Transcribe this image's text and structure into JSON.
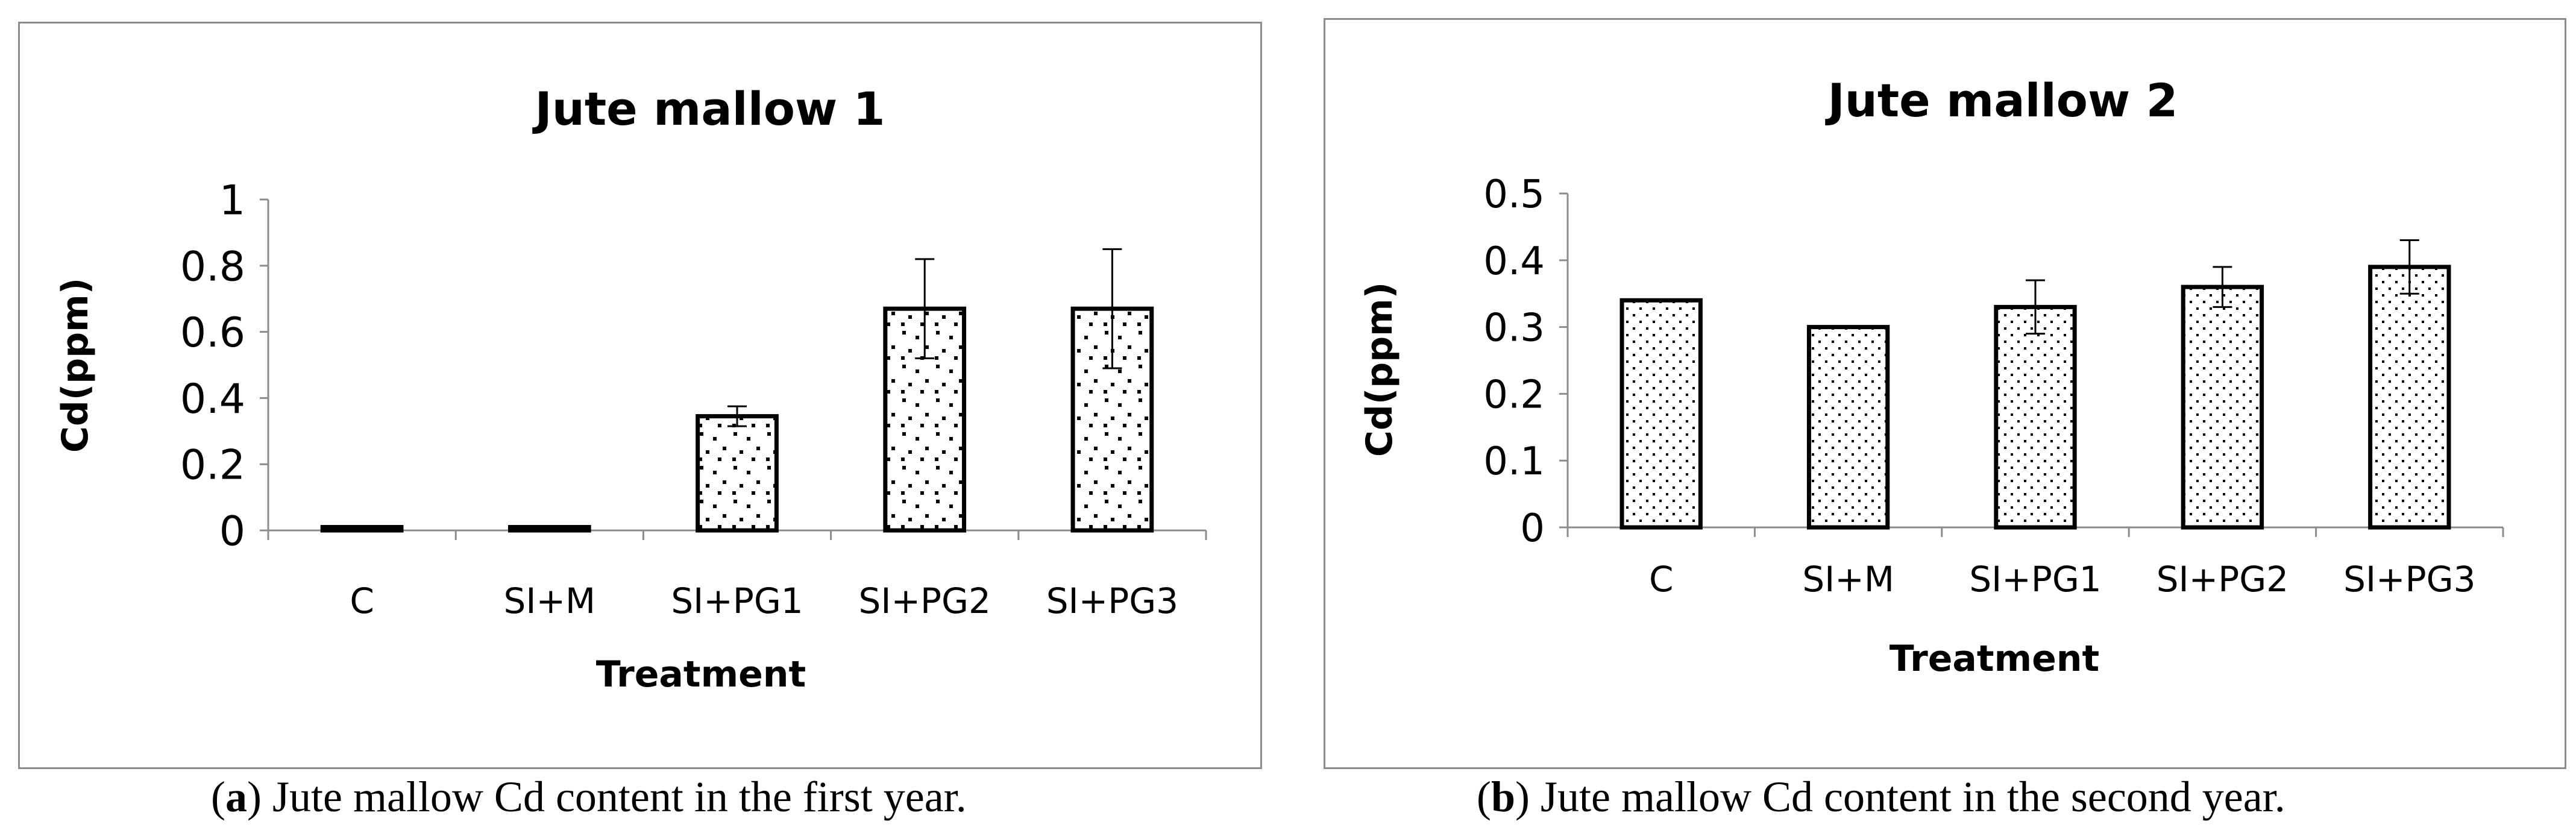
{
  "chart_data": [
    {
      "type": "bar",
      "title": "Jute mallow 1",
      "xlabel": "Treatment",
      "ylabel": "Cd(ppm)",
      "categories": [
        "C",
        "SI+M",
        "SI+PG1",
        "SI+PG2",
        "SI+PG3"
      ],
      "values": [
        0.01,
        0.01,
        0.345,
        0.67,
        0.67
      ],
      "errors": [
        0,
        0,
        0.03,
        0.15,
        0.18
      ],
      "ylim": [
        0,
        1
      ],
      "yticks": [
        "0",
        "0.2",
        "0.4",
        "0.6",
        "0.8",
        "1"
      ],
      "ytick_values": [
        0,
        0.2,
        0.4,
        0.6,
        0.8,
        1.0
      ],
      "pattern": "sparse-dots",
      "caption_label": "a",
      "caption_text": " Jute mallow Cd content in the first year."
    },
    {
      "type": "bar",
      "title": "Jute mallow 2",
      "xlabel": "Treatment",
      "ylabel": "Cd(ppm)",
      "categories": [
        "C",
        "SI+M",
        "SI+PG1",
        "SI+PG2",
        "SI+PG3"
      ],
      "values": [
        0.34,
        0.3,
        0.33,
        0.36,
        0.39
      ],
      "errors": [
        0,
        0,
        0.04,
        0.03,
        0.04
      ],
      "ylim": [
        0,
        0.5
      ],
      "yticks": [
        "0",
        "0.1",
        "0.2",
        "0.3",
        "0.4",
        "0.5"
      ],
      "ytick_values": [
        0,
        0.1,
        0.2,
        0.3,
        0.4,
        0.5
      ],
      "pattern": "dense-dots",
      "caption_label": "b",
      "caption_text": " Jute mallow Cd content in the second year."
    }
  ]
}
